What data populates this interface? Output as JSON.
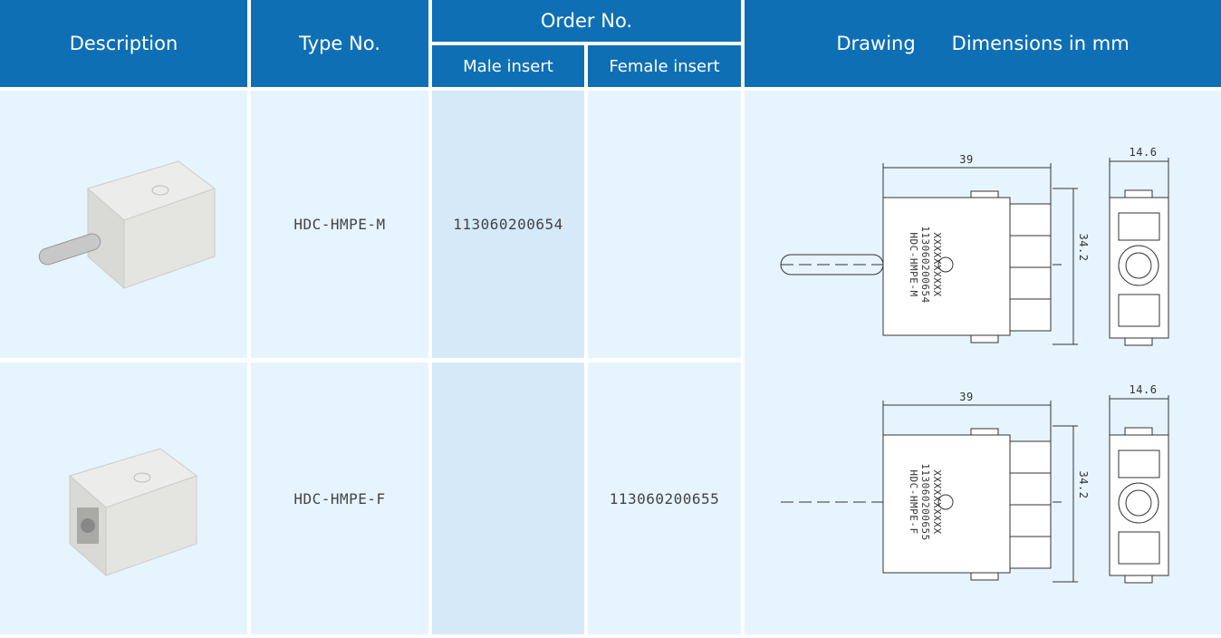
{
  "table": {
    "header": {
      "description": "Description",
      "type_no": "Type No.",
      "order_no": "Order No.",
      "male_insert": "Male insert",
      "female_insert": "Female insert",
      "drawing": "Drawing",
      "dimensions": "Dimensions in mm"
    },
    "rows": [
      {
        "type_no": "HDC-HMPE-M",
        "male_insert": "113060200654"
      },
      {
        "type_no": "HDC-HMPE-F",
        "female_insert": "113060200655"
      }
    ]
  },
  "drawings": [
    {
      "width": "39",
      "depth": "14.6",
      "height": "34.2",
      "marking": [
        "HDC-HMPE-M",
        "113060200654",
        "XXXXXXXXXX"
      ],
      "pin": true
    },
    {
      "width": "39",
      "depth": "14.6",
      "height": "34.2",
      "marking": [
        "HDC-HMPE-F",
        "113060200655",
        "XXXXXXXXXX"
      ],
      "pin": false
    }
  ]
}
